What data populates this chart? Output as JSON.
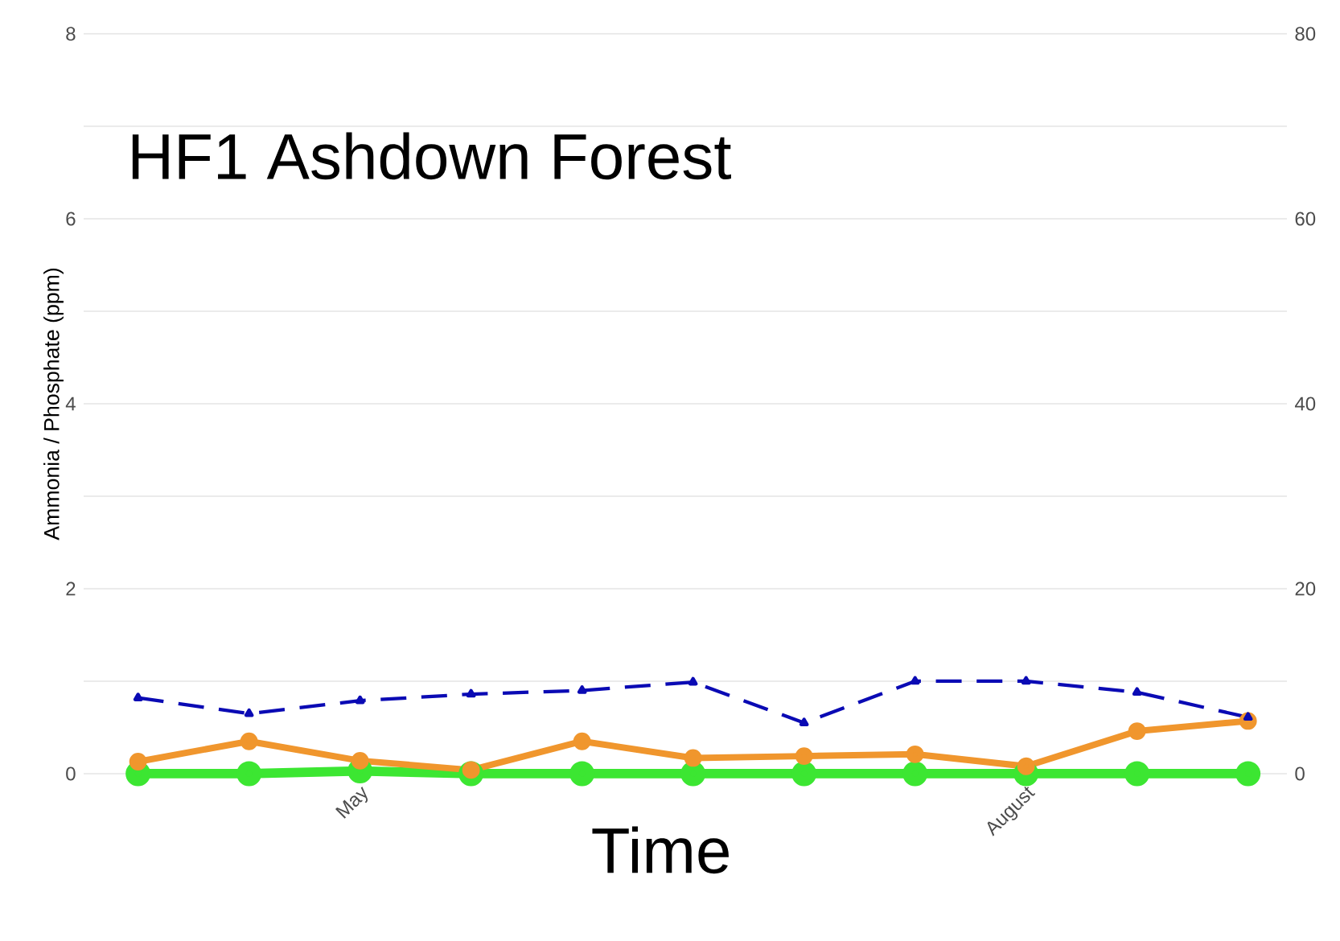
{
  "chart_data": {
    "type": "line",
    "title": "HF1 Ashdown Forest",
    "xlabel": "Time",
    "ylabel": "Ammonia / Phosphate (ppm)",
    "categories": [
      null,
      null,
      "May",
      null,
      null,
      null,
      null,
      null,
      "August",
      null,
      null
    ],
    "ylim": [
      0,
      8
    ],
    "yticks": [
      0,
      {
        "value": 1,
        "label": null
      },
      2,
      {
        "value": 3,
        "label": null
      },
      4,
      {
        "value": 5,
        "label": null
      },
      6,
      {
        "value": 7,
        "label": null
      },
      8
    ],
    "y2lim": [
      0,
      80
    ],
    "y2ticks": [
      0,
      20,
      40,
      60,
      80
    ],
    "grid": "y",
    "series": [
      {
        "color": "#0a0ab4",
        "line_style": "dashed",
        "marker": "triangle",
        "values": [
          0.82,
          0.65,
          0.79,
          0.86,
          0.9,
          0.99,
          0.55,
          1.0,
          1.0,
          0.88,
          0.61
        ]
      },
      {
        "color": "#f0962d",
        "line_style": "solid",
        "marker": "circle",
        "values": [
          0.13,
          0.35,
          0.14,
          0.04,
          0.35,
          0.17,
          0.19,
          0.21,
          0.08,
          0.46,
          0.57
        ]
      },
      {
        "color": "#3ce632",
        "line_style": "solid",
        "marker": "circle",
        "values": [
          0,
          0,
          0.03,
          0,
          0,
          0,
          0,
          0,
          0,
          0,
          0
        ]
      }
    ]
  }
}
